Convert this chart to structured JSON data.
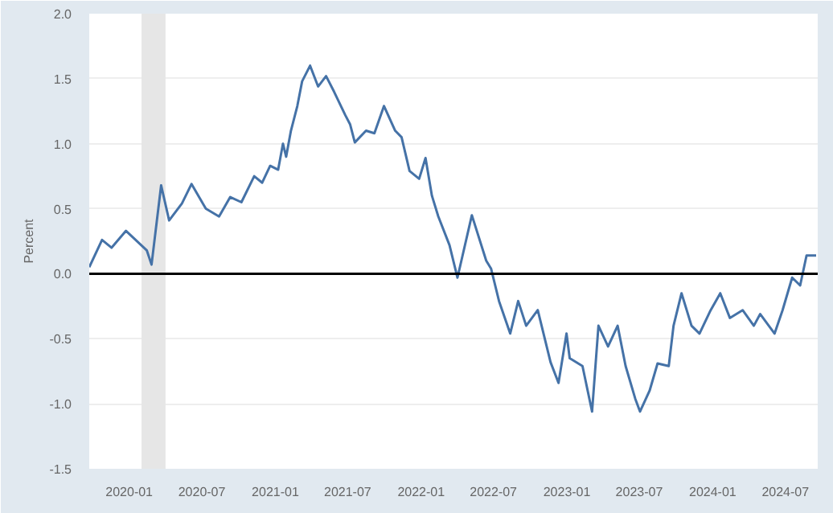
{
  "chart_data": {
    "type": "line",
    "ylabel": "Percent",
    "x": [
      "2019-09-23",
      "2019-10-25",
      "2019-11-18",
      "2019-12-24",
      "2020-02-14",
      "2020-02-26",
      "2020-03-21",
      "2020-04-10",
      "2020-05-12",
      "2020-06-05",
      "2020-07-11",
      "2020-08-13",
      "2020-09-10",
      "2020-10-08",
      "2020-11-09",
      "2020-11-29",
      "2020-12-19",
      "2021-01-08",
      "2021-01-20",
      "2021-01-28",
      "2021-02-09",
      "2021-02-25",
      "2021-03-09",
      "2021-03-29",
      "2021-04-18",
      "2021-05-08",
      "2021-05-28",
      "2021-06-25",
      "2021-07-07",
      "2021-07-19",
      "2021-08-16",
      "2021-09-06",
      "2021-09-30",
      "2021-10-28",
      "2021-11-13",
      "2021-12-03",
      "2021-12-27",
      "2022-01-12",
      "2022-01-28",
      "2022-02-13",
      "2022-03-13",
      "2022-04-02",
      "2022-05-08",
      "2022-06-13",
      "2022-06-25",
      "2022-07-15",
      "2022-08-12",
      "2022-09-01",
      "2022-09-21",
      "2022-10-20",
      "2022-11-21",
      "2022-12-11",
      "2022-12-31",
      "2023-01-08",
      "2023-02-09",
      "2023-03-05",
      "2023-03-21",
      "2023-04-14",
      "2023-05-08",
      "2023-05-28",
      "2023-06-21",
      "2023-07-03",
      "2023-07-27",
      "2023-08-16",
      "2023-09-13",
      "2023-09-25",
      "2023-10-15",
      "2023-11-09",
      "2023-11-29",
      "2023-12-27",
      "2024-01-20",
      "2024-02-13",
      "2024-03-16",
      "2024-04-13",
      "2024-04-29",
      "2024-06-04",
      "2024-06-24",
      "2024-07-18",
      "2024-08-07",
      "2024-08-23",
      "2024-09-16"
    ],
    "series": [
      {
        "color": "#4572a7",
        "values": [
          0.05,
          0.26,
          0.2,
          0.33,
          0.18,
          0.07,
          0.68,
          0.41,
          0.54,
          0.69,
          0.5,
          0.44,
          0.59,
          0.55,
          0.75,
          0.7,
          0.83,
          0.8,
          1.0,
          0.9,
          1.1,
          1.29,
          1.48,
          1.6,
          1.44,
          1.52,
          1.4,
          1.22,
          1.15,
          1.01,
          1.1,
          1.08,
          1.29,
          1.1,
          1.05,
          0.79,
          0.73,
          0.89,
          0.6,
          0.44,
          0.22,
          -0.03,
          0.45,
          0.1,
          0.04,
          -0.21,
          -0.46,
          -0.21,
          -0.4,
          -0.28,
          -0.68,
          -0.84,
          -0.46,
          -0.65,
          -0.71,
          -1.06,
          -0.4,
          -0.56,
          -0.4,
          -0.71,
          -0.96,
          -1.06,
          -0.9,
          -0.69,
          -0.71,
          -0.4,
          -0.15,
          -0.4,
          -0.46,
          -0.28,
          -0.15,
          -0.34,
          -0.28,
          -0.4,
          -0.31,
          -0.46,
          -0.28,
          -0.03,
          -0.09,
          0.14,
          0.14
        ]
      }
    ],
    "xlim": [
      "2019-09-23",
      "2024-09-20"
    ],
    "xticks": [
      {
        "value": "2020-01",
        "label": "2020-01"
      },
      {
        "value": "2020-07",
        "label": "2020-07"
      },
      {
        "value": "2021-01",
        "label": "2021-01"
      },
      {
        "value": "2021-07",
        "label": "2021-07"
      },
      {
        "value": "2022-01",
        "label": "2022-01"
      },
      {
        "value": "2022-07",
        "label": "2022-07"
      },
      {
        "value": "2023-01",
        "label": "2023-01"
      },
      {
        "value": "2023-07",
        "label": "2023-07"
      },
      {
        "value": "2024-01",
        "label": "2024-01"
      },
      {
        "value": "2024-07",
        "label": "2024-07"
      }
    ],
    "ylim": [
      -1.5,
      2.0
    ],
    "yticks": [
      {
        "value": -1.5,
        "label": "-1.5"
      },
      {
        "value": -1.0,
        "label": "-1.0"
      },
      {
        "value": -0.5,
        "label": "-0.5"
      },
      {
        "value": 0.0,
        "label": "0.0"
      },
      {
        "value": 0.5,
        "label": "0.5"
      },
      {
        "value": 1.0,
        "label": "1.0"
      },
      {
        "value": 1.5,
        "label": "1.5"
      },
      {
        "value": 2.0,
        "label": "2.0"
      }
    ],
    "grid": "y",
    "line_style": "solid",
    "ref_lines": [
      {
        "axis": "y",
        "value": 0,
        "color": "#000000"
      }
    ],
    "bands": [
      {
        "axis": "x",
        "from": "2020-02",
        "to": "2020-04",
        "color": "#e6e6e6"
      }
    ]
  }
}
